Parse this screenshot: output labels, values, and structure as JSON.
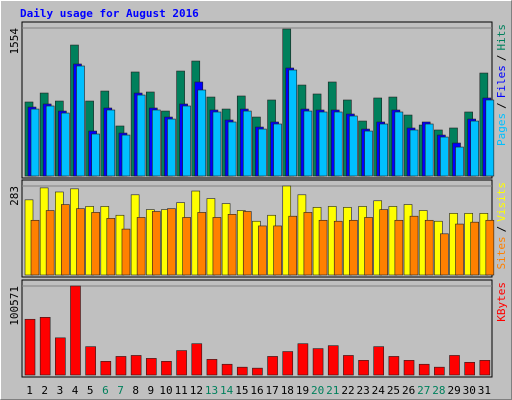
{
  "chart_data": [
    {
      "type": "bar",
      "title": "Daily usage for August 2016",
      "legend_separator": "/",
      "categories": [
        "1",
        "2",
        "3",
        "4",
        "5",
        "6",
        "7",
        "8",
        "9",
        "10",
        "11",
        "12",
        "13",
        "14",
        "15",
        "16",
        "17",
        "18",
        "19",
        "20",
        "21",
        "22",
        "23",
        "24",
        "25",
        "26",
        "27",
        "28",
        "29",
        "30",
        "31"
      ],
      "ylim": [
        0,
        1554
      ],
      "yticks": [
        1554
      ],
      "series": [
        {
          "name": "Hits",
          "color": "#00805c",
          "values": [
            777,
            871,
            787,
            1375,
            787,
            892,
            525,
            1092,
            882,
            682,
            1102,
            1207,
            829,
            703,
            840,
            619,
            798,
            1543,
            955,
            861,
            987,
            798,
            577,
            819,
            829,
            640,
            535,
            483,
            504,
            672,
            1081
          ]
        },
        {
          "name": "Files",
          "color": "#0000ff",
          "values": [
            724,
            756,
            682,
            1176,
            472,
            714,
            451,
            871,
            714,
            619,
            756,
            987,
            693,
            588,
            703,
            514,
            567,
            1134,
            703,
            693,
            693,
            651,
            493,
            567,
            693,
            504,
            567,
            430,
            346,
            598,
            819
          ]
        },
        {
          "name": "Pages",
          "color": "#00c0ff",
          "values": [
            703,
            735,
            661,
            1155,
            441,
            693,
            430,
            850,
            693,
            598,
            735,
            903,
            672,
            567,
            682,
            493,
            546,
            1113,
            682,
            672,
            672,
            630,
            472,
            546,
            672,
            483,
            546,
            409,
            304,
            577,
            798
          ]
        }
      ]
    },
    {
      "type": "bar",
      "categories": [
        "1",
        "2",
        "3",
        "4",
        "5",
        "6",
        "7",
        "8",
        "9",
        "10",
        "11",
        "12",
        "13",
        "14",
        "15",
        "16",
        "17",
        "18",
        "19",
        "20",
        "21",
        "22",
        "23",
        "24",
        "25",
        "26",
        "27",
        "28",
        "29",
        "30",
        "31"
      ],
      "ylim": [
        0,
        283
      ],
      "yticks": [
        283
      ],
      "series": [
        {
          "name": "Visits",
          "color": "#ffff00",
          "values": [
            239,
            277,
            264,
            274,
            218,
            218,
            190,
            255,
            208,
            208,
            230,
            267,
            243,
            227,
            205,
            171,
            190,
            283,
            255,
            215,
            218,
            215,
            218,
            236,
            218,
            224,
            205,
            171,
            196,
            196,
            196
          ]
        },
        {
          "name": "Sites",
          "color": "#ff8000",
          "values": [
            174,
            205,
            224,
            211,
            199,
            180,
            146,
            183,
            202,
            211,
            183,
            199,
            183,
            193,
            202,
            156,
            156,
            187,
            199,
            174,
            171,
            174,
            183,
            208,
            174,
            187,
            174,
            131,
            162,
            168,
            174
          ]
        }
      ]
    },
    {
      "type": "bar",
      "categories": [
        "1",
        "2",
        "3",
        "4",
        "5",
        "6",
        "7",
        "8",
        "9",
        "10",
        "11",
        "12",
        "13",
        "14",
        "15",
        "16",
        "17",
        "18",
        "19",
        "20",
        "21",
        "22",
        "23",
        "24",
        "25",
        "26",
        "27",
        "28",
        "29",
        "30",
        "31"
      ],
      "category_colors": [
        "#000000",
        "#000000",
        "#000000",
        "#000000",
        "#000000",
        "#00805c",
        "#00805c",
        "#000000",
        "#000000",
        "#000000",
        "#000000",
        "#000000",
        "#00805c",
        "#00805c",
        "#000000",
        "#000000",
        "#000000",
        "#000000",
        "#000000",
        "#00805c",
        "#00805c",
        "#000000",
        "#000000",
        "#000000",
        "#000000",
        "#000000",
        "#00805c",
        "#00805c",
        "#000000",
        "#000000",
        "#000000"
      ],
      "ylim": [
        0,
        100571
      ],
      "yticks": [
        100571
      ],
      "series": [
        {
          "name": "KBytes",
          "color": "#ff0000",
          "values": [
            62985,
            65195,
            41990,
            100571,
            32045,
            15470,
            20995,
            22100,
            18785,
            15470,
            27625,
            35360,
            17680,
            12155,
            8840,
            7735,
            20995,
            26520,
            35360,
            29835,
            33150,
            22100,
            16575,
            32045,
            20995,
            16575,
            12155,
            8840,
            22100,
            14365,
            16575
          ]
        }
      ]
    }
  ]
}
